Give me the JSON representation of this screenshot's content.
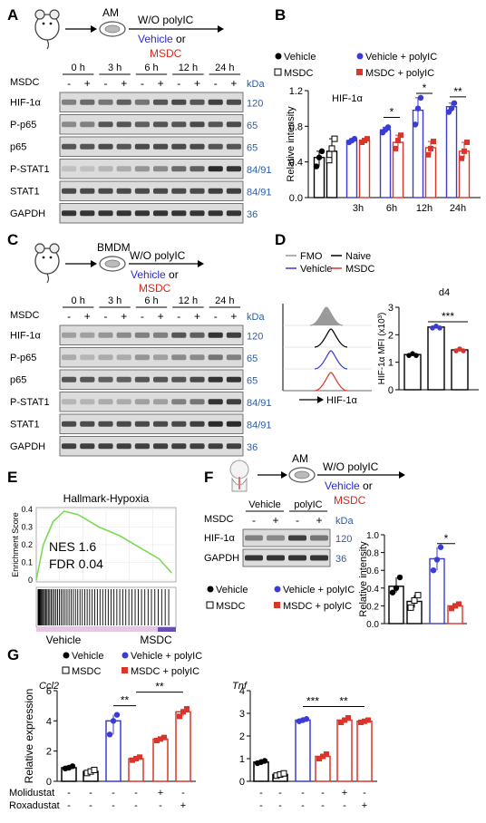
{
  "panels": {
    "A": {
      "letter": "A",
      "source": "AM",
      "treatment": {
        "line1": "W/O polyIC",
        "vehicle": "Vehicle",
        "or": " or",
        "msdc": "MSDC"
      },
      "msdc_row_label": "MSDC",
      "kda_label": "kDa",
      "timepoints": [
        "0 h",
        "3 h",
        "6 h",
        "12 h",
        "24 h"
      ],
      "signs": [
        "-",
        "+",
        "-",
        "+",
        "-",
        "+",
        "-",
        "+",
        "-",
        "+"
      ],
      "blots": [
        {
          "label": "HIF-1α",
          "kda": "120",
          "intensity": [
            0.5,
            0.6,
            0.55,
            0.65,
            0.55,
            0.7,
            0.75,
            0.7,
            0.8,
            0.75
          ]
        },
        {
          "label": "P-p65",
          "kda": "65",
          "intensity": [
            0.45,
            0.5,
            0.7,
            0.7,
            0.65,
            0.7,
            0.7,
            0.75,
            0.7,
            0.75
          ]
        },
        {
          "label": "p65",
          "kda": "65",
          "intensity": [
            0.7,
            0.7,
            0.75,
            0.7,
            0.75,
            0.75,
            0.75,
            0.75,
            0.7,
            0.7
          ]
        },
        {
          "label": "P-STAT1",
          "kda": "84/91",
          "intensity": [
            0.2,
            0.2,
            0.25,
            0.3,
            0.4,
            0.45,
            0.6,
            0.65,
            0.9,
            0.85
          ]
        },
        {
          "label": "STAT1",
          "kda": "84/91",
          "intensity": [
            0.75,
            0.75,
            0.75,
            0.75,
            0.75,
            0.75,
            0.75,
            0.75,
            0.8,
            0.8
          ]
        },
        {
          "label": "GAPDH",
          "kda": "36",
          "intensity": [
            0.85,
            0.85,
            0.85,
            0.85,
            0.85,
            0.85,
            0.85,
            0.85,
            0.85,
            0.85
          ]
        }
      ]
    },
    "C": {
      "letter": "C",
      "source": "BMDM",
      "treatment": {
        "line1": "W/O polyIC",
        "vehicle": "Vehicle",
        "or": " or",
        "msdc": "MSDC"
      },
      "msdc_row_label": "MSDC",
      "kda_label": "kDa",
      "timepoints": [
        "0 h",
        "3 h",
        "6 h",
        "12 h",
        "24 h"
      ],
      "signs": [
        "-",
        "+",
        "-",
        "+",
        "-",
        "+",
        "-",
        "+",
        "-",
        "+"
      ],
      "blots": [
        {
          "label": "HIF-1α",
          "kda": "120",
          "intensity": [
            0.35,
            0.35,
            0.4,
            0.45,
            0.5,
            0.5,
            0.7,
            0.65,
            0.85,
            0.8
          ]
        },
        {
          "label": "P-p65",
          "kda": "65",
          "intensity": [
            0.3,
            0.25,
            0.3,
            0.3,
            0.4,
            0.35,
            0.45,
            0.45,
            0.55,
            0.5
          ]
        },
        {
          "label": "p65",
          "kda": "65",
          "intensity": [
            0.7,
            0.7,
            0.65,
            0.65,
            0.7,
            0.7,
            0.7,
            0.75,
            0.85,
            0.85
          ]
        },
        {
          "label": "P-STAT1",
          "kda": "84/91",
          "intensity": [
            0.25,
            0.25,
            0.3,
            0.3,
            0.35,
            0.35,
            0.5,
            0.55,
            0.85,
            0.8
          ]
        },
        {
          "label": "STAT1",
          "kda": "84/91",
          "intensity": [
            0.75,
            0.75,
            0.75,
            0.75,
            0.75,
            0.75,
            0.75,
            0.8,
            0.9,
            0.9
          ]
        },
        {
          "label": "GAPDH",
          "kda": "36",
          "intensity": [
            0.8,
            0.8,
            0.8,
            0.8,
            0.8,
            0.8,
            0.8,
            0.8,
            0.8,
            0.8
          ]
        }
      ]
    },
    "F": {
      "letter": "F",
      "source": "AM",
      "treatment": {
        "line1": "W/O polyIC",
        "vehicle": "Vehicle",
        "or": " or",
        "msdc": "MSDC"
      },
      "msdc_row_label": "MSDC",
      "kda_label": "kDa",
      "groups": [
        "Vehicle",
        "polyIC"
      ],
      "signs": [
        "-",
        "+",
        "-",
        "+"
      ],
      "blots": [
        {
          "label": "HIF-1α",
          "kda": "120",
          "intensity": [
            0.5,
            0.45,
            0.8,
            0.55
          ]
        },
        {
          "label": "GAPDH",
          "kda": "36",
          "intensity": [
            0.85,
            0.85,
            0.85,
            0.85
          ]
        }
      ]
    }
  },
  "legend_4groups": {
    "vehicle": "Vehicle",
    "vehicle_polyic": "Vehicle + polyIC",
    "msdc": "MSDC",
    "msdc_polyic": "MSDC + polyIC"
  },
  "colors": {
    "vehicle": "#000000",
    "vehicle_polyic": "#3b3bd6",
    "msdc": "#000000",
    "msdc_polyic": "#d9362b",
    "kda": "#2a5da8",
    "gsea_line": "#7ed957",
    "gsea_bar": "#e7c6e3"
  },
  "chart_data": [
    {
      "id": "B",
      "letter": "B",
      "type": "bar",
      "title": "HIF-1α",
      "ylabel": "Relative intensity",
      "ylim": [
        0,
        1.2
      ],
      "yticks": [
        "0.0",
        "0.4",
        "0.8",
        "1.2"
      ],
      "time_labels": [
        "3h",
        "6h",
        "12h",
        "24h"
      ],
      "series": [
        {
          "name": "Vehicle",
          "values": [
            0.45
          ],
          "points": [
            [
              0.35,
              0.45,
              0.52
            ]
          ]
        },
        {
          "name": "MSDC",
          "values": [
            0.52
          ],
          "points": [
            [
              0.42,
              0.55,
              0.66
            ]
          ]
        },
        {
          "name": "Vehicle + polyIC",
          "values": [
            0.64,
            0.76,
            0.98,
            1.02
          ],
          "points": [
            [
              0.62,
              0.64,
              0.66
            ],
            [
              0.73,
              0.76,
              0.79
            ],
            [
              0.82,
              1.0,
              1.12
            ],
            [
              0.96,
              1.0,
              1.06
            ]
          ]
        },
        {
          "name": "MSDC + polyIC",
          "values": [
            0.64,
            0.62,
            0.56,
            0.52
          ],
          "points": [
            [
              0.62,
              0.64,
              0.66
            ],
            [
              0.55,
              0.64,
              0.7
            ],
            [
              0.48,
              0.55,
              0.63
            ],
            [
              0.44,
              0.52,
              0.62
            ]
          ]
        }
      ],
      "significance": [
        "*",
        "*",
        "**"
      ]
    },
    {
      "id": "D_hist",
      "letter": "D",
      "type": "area",
      "legend": [
        "FMO",
        "Naive",
        "Vehicle",
        "MSDC"
      ],
      "xlabel": "HIF-1α",
      "tracks": [
        "FMO",
        "Naive",
        "Vehicle",
        "MSDC"
      ]
    },
    {
      "id": "D_bar",
      "type": "bar",
      "title": "d4",
      "ylabel": "HIF-1α MFI (x10³)",
      "ylim": [
        0,
        3
      ],
      "yticks": [
        "0",
        "1",
        "2",
        "3"
      ],
      "categories": [
        "Naive",
        "Vehicle",
        "MSDC"
      ],
      "values": [
        1.28,
        2.28,
        1.45
      ],
      "significance": "***"
    },
    {
      "id": "E",
      "letter": "E",
      "type": "line",
      "title": "Hallmark-Hypoxia",
      "ylabel": "Enrichment Score",
      "ylim": [
        0,
        0.4
      ],
      "yticks": [
        "0",
        "0.1",
        "0.2",
        "0.3",
        "0.4"
      ],
      "annotation_nes": "NES 1.6",
      "annotation_fdr": "FDR 0.04",
      "left_label": "Vehicle",
      "right_label": "MSDC"
    },
    {
      "id": "F_bar",
      "type": "bar",
      "ylabel": "Relative intensity",
      "ylim": [
        0,
        1.0
      ],
      "yticks": [
        "0.0",
        "0.2",
        "0.4",
        "0.6",
        "0.8",
        "1.0"
      ],
      "categories": [
        "Vehicle",
        "MSDC",
        "Vehicle + polyIC",
        "MSDC + polyIC"
      ],
      "values": [
        0.42,
        0.25,
        0.73,
        0.2
      ],
      "points": [
        [
          0.35,
          0.4,
          0.52
        ],
        [
          0.18,
          0.26,
          0.32
        ],
        [
          0.6,
          0.72,
          0.86
        ],
        [
          0.17,
          0.2,
          0.22
        ]
      ],
      "significance": "*"
    },
    {
      "id": "G_ccl2",
      "letter": "G",
      "type": "bar",
      "title": "Ccl2",
      "ylabel": "Relative expression",
      "ylim": [
        0,
        6
      ],
      "yticks": [
        "0",
        "2",
        "4",
        "6"
      ],
      "values": [
        0.9,
        0.65,
        4.0,
        1.5,
        2.8,
        4.6
      ],
      "points": [
        [
          0.85,
          0.9,
          1.0
        ],
        [
          0.55,
          0.65,
          0.75
        ],
        [
          3.1,
          4.0,
          4.4
        ],
        [
          1.4,
          1.5,
          1.6
        ],
        [
          2.7,
          2.8,
          2.9
        ],
        [
          4.3,
          4.6,
          4.8
        ]
      ],
      "significance": [
        "**",
        "**"
      ]
    },
    {
      "id": "G_tnf",
      "type": "bar",
      "title": "Tnf",
      "ylabel": "",
      "ylim": [
        0,
        4
      ],
      "yticks": [
        "0",
        "1",
        "2",
        "3",
        "4"
      ],
      "values": [
        0.85,
        0.3,
        2.7,
        1.1,
        2.7,
        2.65
      ],
      "points": [
        [
          0.8,
          0.85,
          0.9
        ],
        [
          0.25,
          0.3,
          0.35
        ],
        [
          2.65,
          2.7,
          2.75
        ],
        [
          1.0,
          1.1,
          1.2
        ],
        [
          2.6,
          2.7,
          2.8
        ],
        [
          2.6,
          2.65,
          2.7
        ]
      ],
      "significance": [
        "***",
        "**"
      ],
      "treatments": [
        {
          "label": "Molidustat",
          "signs": [
            "-",
            "-",
            "-",
            "-",
            "+",
            "-"
          ]
        },
        {
          "label": "Roxadustat",
          "signs": [
            "-",
            "-",
            "-",
            "-",
            "-",
            "+"
          ]
        }
      ]
    }
  ]
}
